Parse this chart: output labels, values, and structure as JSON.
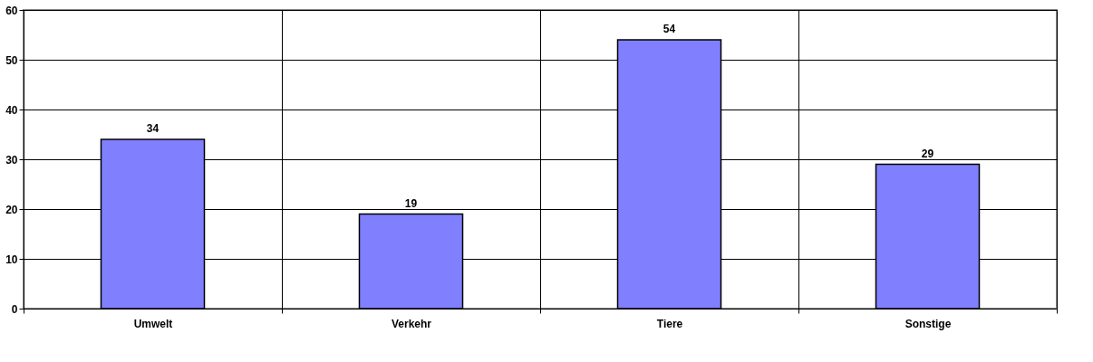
{
  "chart_data": {
    "type": "bar",
    "categories": [
      "Umwelt",
      "Verkehr",
      "Tiere",
      "Sonstige"
    ],
    "values": [
      34,
      19,
      54,
      29
    ],
    "color": "#8080ff",
    "ylim": [
      0,
      60
    ],
    "yticks": [
      0,
      10,
      20,
      30,
      40,
      50,
      60
    ],
    "grid": true,
    "data_labels": true
  }
}
